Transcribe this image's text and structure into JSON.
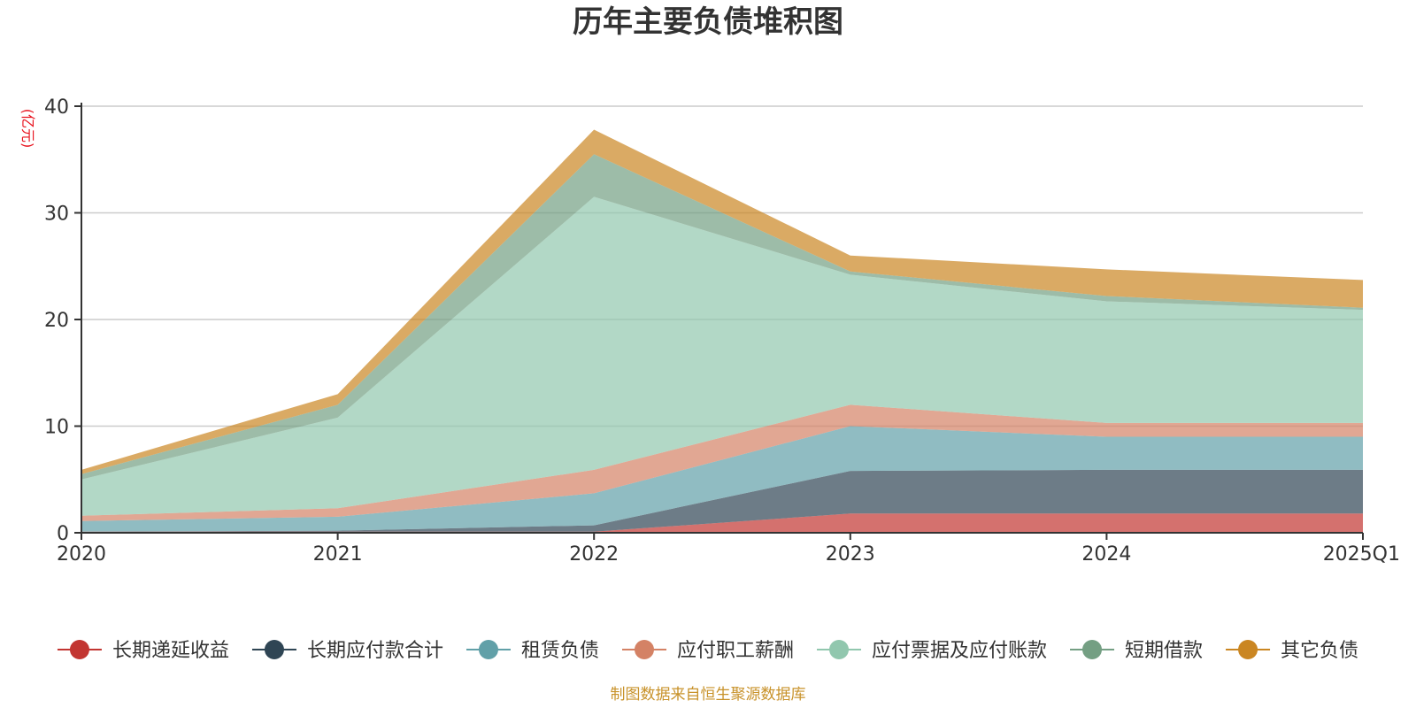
{
  "chart_data": {
    "type": "area",
    "stacked": true,
    "title": "历年主要负债堆积图",
    "ylabel": "(亿元)",
    "x": [
      "2020",
      "2021",
      "2022",
      "2023",
      "2024",
      "2025Q1"
    ],
    "ylim": [
      0,
      40
    ],
    "yticks": [
      0,
      10,
      20,
      30,
      40
    ],
    "grid": true,
    "legend_position": "bottom",
    "series": [
      {
        "name": "长期递延收益",
        "values": [
          0.1,
          0.1,
          0.1,
          1.8,
          1.8,
          1.8
        ],
        "color": "#c23531"
      },
      {
        "name": "长期应付款合计",
        "values": [
          0.0,
          0.1,
          0.6,
          4.0,
          4.1,
          4.1
        ],
        "color": "#2f4554"
      },
      {
        "name": "租赁负债",
        "values": [
          1.0,
          1.3,
          3.0,
          4.2,
          3.1,
          3.1
        ],
        "color": "#61a0a8"
      },
      {
        "name": "应付职工薪酬",
        "values": [
          0.5,
          0.8,
          2.2,
          2.0,
          1.3,
          1.3
        ],
        "color": "#d48265"
      },
      {
        "name": "应付票据及应付账款",
        "values": [
          3.4,
          8.5,
          25.6,
          12.2,
          11.4,
          10.6
        ],
        "color": "#91c7ae"
      },
      {
        "name": "短期借款",
        "values": [
          0.5,
          1.2,
          4.0,
          0.3,
          0.5,
          0.2
        ],
        "color": "#749f83"
      },
      {
        "name": "其它负债",
        "values": [
          0.4,
          1.0,
          2.3,
          1.5,
          2.5,
          2.6
        ],
        "color": "#ca8622"
      }
    ]
  },
  "source_note": "制图数据来自恒生聚源数据库"
}
